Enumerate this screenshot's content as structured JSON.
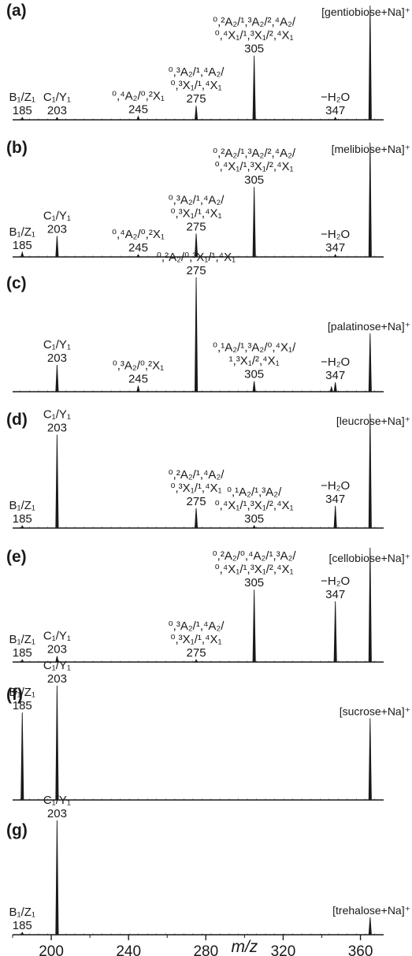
{
  "chart_data": {
    "type": "line",
    "xlabel": "m/z",
    "xlim": [
      180,
      372
    ],
    "x_ticks": [
      200,
      240,
      280,
      320,
      360
    ],
    "tick_labels": [
      "200",
      "240",
      "280",
      "320",
      "360"
    ],
    "grid": false,
    "panels": [
      {
        "label": "(a)",
        "precursor": "[gentiobiose+Na]⁺",
        "peaks": [
          {
            "x": 185,
            "y": 0.02
          },
          {
            "x": 203,
            "y": 0.02
          },
          {
            "x": 245,
            "y": 0.03
          },
          {
            "x": 275,
            "y": 0.12
          },
          {
            "x": 305,
            "y": 0.55
          },
          {
            "x": 347,
            "y": 0.02
          },
          {
            "x": 365,
            "y": 0.98
          }
        ],
        "annotations": [
          {
            "lines": [
              "B₁/Z₁",
              "185"
            ],
            "x": 185
          },
          {
            "lines": [
              "C₁/Y₁",
              "203"
            ],
            "x": 203
          },
          {
            "lines": [
              "⁰,⁴A₂/⁰,²X₁",
              "245"
            ],
            "x": 245
          },
          {
            "lines": [
              "⁰,³A₂/¹,⁴A₂/",
              "⁰,³X₁/¹,⁴X₁",
              "275"
            ],
            "x": 275
          },
          {
            "lines": [
              "⁰,²A₂/¹,³A₂/²,⁴A₂/",
              "⁰,⁴X₁/¹,³X₁/²,⁴X₁",
              "305"
            ],
            "x": 305
          },
          {
            "lines": [
              "−H₂O",
              "347"
            ],
            "x": 347
          }
        ]
      },
      {
        "label": "(b)",
        "precursor": "[melibiose+Na]⁺",
        "peaks": [
          {
            "x": 185,
            "y": 0.04
          },
          {
            "x": 203,
            "y": 0.18
          },
          {
            "x": 245,
            "y": 0.02
          },
          {
            "x": 275,
            "y": 0.2
          },
          {
            "x": 305,
            "y": 0.6
          },
          {
            "x": 347,
            "y": 0.02
          },
          {
            "x": 365,
            "y": 0.98
          }
        ],
        "annotations": [
          {
            "lines": [
              "B₁/Z₁",
              "185"
            ],
            "x": 185
          },
          {
            "lines": [
              "C₁/Y₁",
              "203"
            ],
            "x": 203
          },
          {
            "lines": [
              "⁰,⁴A₂/⁰,²X₁",
              "245"
            ],
            "x": 245
          },
          {
            "lines": [
              "⁰,³A₂/¹,⁴A₂/",
              "⁰,³X₁/¹,⁴X₁",
              "275"
            ],
            "x": 275
          },
          {
            "lines": [
              "⁰,²A₂/¹,³A₂/²,⁴A₂/",
              "⁰,⁴X₁/¹,³X₁/²,⁴X₁",
              "305"
            ],
            "x": 305
          },
          {
            "lines": [
              "−H₂O",
              "347"
            ],
            "x": 347
          }
        ]
      },
      {
        "label": "(c)",
        "precursor": "[palatinose+Na]⁺",
        "peaks": [
          {
            "x": 203,
            "y": 0.23
          },
          {
            "x": 245,
            "y": 0.05
          },
          {
            "x": 275,
            "y": 0.98
          },
          {
            "x": 305,
            "y": 0.09
          },
          {
            "x": 345,
            "y": 0.04
          },
          {
            "x": 347,
            "y": 0.08
          },
          {
            "x": 365,
            "y": 0.5
          }
        ],
        "annotations": [
          {
            "lines": [
              "C₁/Y₁",
              "203"
            ],
            "x": 203
          },
          {
            "lines": [
              "⁰,³A₂/⁰,²X₁",
              "245"
            ],
            "x": 245
          },
          {
            "lines": [
              "⁰,²A₂/⁰,³X₁/¹,⁴X₁",
              "275"
            ],
            "x": 275
          },
          {
            "lines": [
              "⁰,¹A₂/¹,³A₂/⁰,⁴X₁/",
              "¹,³X₁/²,⁴X₁",
              "305"
            ],
            "x": 305
          },
          {
            "lines": [
              "−H₂O",
              "347"
            ],
            "x": 347
          }
        ]
      },
      {
        "label": "(d)",
        "precursor": "[leucrose+Na]⁺",
        "peaks": [
          {
            "x": 185,
            "y": 0.02
          },
          {
            "x": 203,
            "y": 0.8
          },
          {
            "x": 275,
            "y": 0.17
          },
          {
            "x": 305,
            "y": 0.02
          },
          {
            "x": 347,
            "y": 0.19
          },
          {
            "x": 365,
            "y": 0.98
          }
        ],
        "annotations": [
          {
            "lines": [
              "B₁/Z₁",
              "185"
            ],
            "x": 185
          },
          {
            "lines": [
              "C₁/Y₁",
              "203"
            ],
            "x": 203
          },
          {
            "lines": [
              "⁰,²A₂/¹,⁴A₂/",
              "⁰,³X₁/¹,⁴X₁",
              "275"
            ],
            "x": 275
          },
          {
            "lines": [
              "⁰,¹A₂/¹,³A₂/",
              "⁰,⁴X₁/¹,³X₁/²,⁴X₁",
              "305"
            ],
            "x": 305
          },
          {
            "lines": [
              "−H₂O",
              "347"
            ],
            "x": 347
          }
        ]
      },
      {
        "label": "(e)",
        "precursor": "[cellobiose+Na]⁺",
        "peaks": [
          {
            "x": 185,
            "y": 0.02
          },
          {
            "x": 203,
            "y": 0.05
          },
          {
            "x": 275,
            "y": 0.02
          },
          {
            "x": 305,
            "y": 0.62
          },
          {
            "x": 347,
            "y": 0.52
          },
          {
            "x": 365,
            "y": 0.98
          }
        ],
        "annotations": [
          {
            "lines": [
              "B₁/Z₁",
              "185"
            ],
            "x": 185
          },
          {
            "lines": [
              "C₁/Y₁",
              "203"
            ],
            "x": 203
          },
          {
            "lines": [
              "⁰,³A₂/¹,⁴A₂/",
              "⁰,³X₁/¹,⁴X₁",
              "275"
            ],
            "x": 275
          },
          {
            "lines": [
              "⁰,²A₂/⁰,⁴A₂/¹,³A₂/",
              "⁰,⁴X₁/¹,³X₁/²,⁴X₁",
              "305"
            ],
            "x": 305
          },
          {
            "lines": [
              "−H₂O",
              "347"
            ],
            "x": 347
          }
        ]
      },
      {
        "label": "(f)",
        "precursor": "[sucrose+Na]⁺",
        "peaks": [
          {
            "x": 185,
            "y": 0.75
          },
          {
            "x": 203,
            "y": 0.98
          },
          {
            "x": 365,
            "y": 0.7
          }
        ],
        "annotations": [
          {
            "lines": [
              "B₁/Z₁",
              "185"
            ],
            "x": 185
          },
          {
            "lines": [
              "C₁/Y₁",
              "203"
            ],
            "x": 203
          }
        ]
      },
      {
        "label": "(g)",
        "precursor": "[trehalose+Na]⁺",
        "peaks": [
          {
            "x": 185,
            "y": 0.02
          },
          {
            "x": 203,
            "y": 0.98
          },
          {
            "x": 365,
            "y": 0.15
          }
        ],
        "annotations": [
          {
            "lines": [
              "B₁/Z₁",
              "185"
            ],
            "x": 185
          },
          {
            "lines": [
              "C₁/Y₁",
              "203"
            ],
            "x": 203
          }
        ]
      }
    ]
  }
}
